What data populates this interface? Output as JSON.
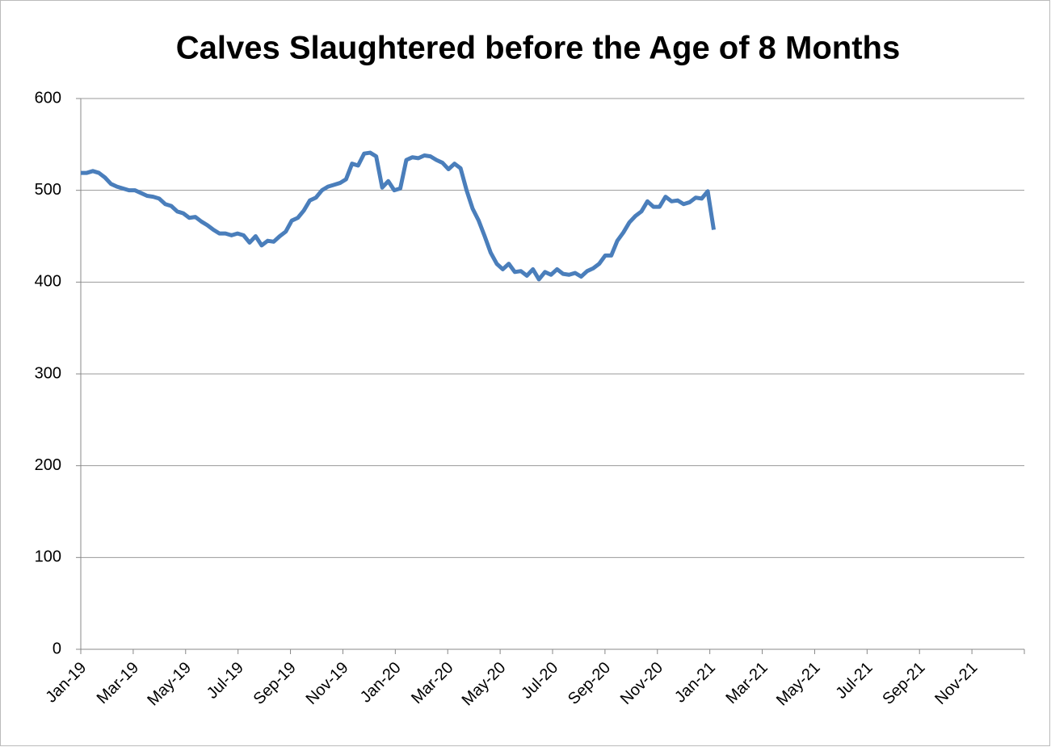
{
  "chart_data": {
    "type": "line",
    "title": "Calves Slaughtered before the Age of 8 Months",
    "x": [
      0,
      0.23,
      0.46,
      0.69,
      0.92,
      1.15,
      1.38,
      1.61,
      1.84,
      2.07,
      2.3,
      2.53,
      2.76,
      2.99,
      3.22,
      3.45,
      3.68,
      3.91,
      4.14,
      4.37,
      4.6,
      4.83,
      5.06,
      5.29,
      5.52,
      5.75,
      5.98,
      6.21,
      6.44,
      6.67,
      6.9,
      7.13,
      7.36,
      7.59,
      7.82,
      8.05,
      8.28,
      8.51,
      8.74,
      8.97,
      9.2,
      9.43,
      9.66,
      9.89,
      10.12,
      10.35,
      10.58,
      10.81,
      11.04,
      11.27,
      11.5,
      11.73,
      11.96,
      12.19,
      12.42,
      12.65,
      12.88,
      13.11,
      13.34,
      13.57,
      13.8,
      14.03,
      14.26,
      14.49,
      14.72,
      14.95,
      15.18,
      15.41,
      15.64,
      15.87,
      16.1,
      16.33,
      16.56,
      16.79,
      17.02,
      17.25,
      17.48,
      17.71,
      17.94,
      18.17,
      18.4,
      18.63,
      18.86,
      19.09,
      19.32,
      19.55,
      19.78,
      20.01,
      20.24,
      20.47,
      20.7,
      20.93,
      21.16,
      21.39,
      21.62,
      21.85,
      22.08,
      22.31,
      22.54,
      22.77,
      23,
      23.23,
      23.46,
      23.69,
      23.92,
      24.15
    ],
    "series": [
      {
        "color": "#4a7ebb",
        "values": [
          519,
          519,
          521,
          519,
          514,
          507,
          504,
          502,
          500,
          500,
          497,
          494,
          493,
          491,
          485,
          483,
          477,
          475,
          470,
          471,
          466,
          462,
          457,
          453,
          453,
          451,
          453,
          451,
          443,
          450,
          440,
          445,
          444,
          450,
          455,
          467,
          470,
          478,
          489,
          492,
          500,
          504,
          506,
          508,
          512,
          529,
          527,
          540,
          541,
          537,
          503,
          510,
          500,
          502,
          533,
          536,
          535,
          538,
          537,
          533,
          530,
          523,
          529,
          524,
          500,
          480,
          467,
          450,
          432,
          420,
          414,
          420,
          411,
          412,
          407,
          414,
          403,
          411,
          408,
          414,
          409,
          408,
          410,
          406,
          412,
          415,
          420,
          429,
          429,
          445,
          454,
          465,
          472,
          477,
          488,
          482,
          482,
          493,
          488,
          489,
          485,
          487,
          492,
          491,
          499,
          457
        ]
      }
    ],
    "xlim": [
      0,
      36
    ],
    "xticks": [
      {
        "value": 0,
        "label": "Jan-19"
      },
      {
        "value": 2,
        "label": "Mar-19"
      },
      {
        "value": 4,
        "label": "May-19"
      },
      {
        "value": 6,
        "label": "Jul-19"
      },
      {
        "value": 8,
        "label": "Sep-19"
      },
      {
        "value": 10,
        "label": "Nov-19"
      },
      {
        "value": 12,
        "label": "Jan-20"
      },
      {
        "value": 14,
        "label": "Mar-20"
      },
      {
        "value": 16,
        "label": "May-20"
      },
      {
        "value": 18,
        "label": "Jul-20"
      },
      {
        "value": 20,
        "label": "Sep-20"
      },
      {
        "value": 22,
        "label": "Nov-20"
      },
      {
        "value": 24,
        "label": "Jan-21"
      },
      {
        "value": 26,
        "label": "Mar-21"
      },
      {
        "value": 28,
        "label": "May-21"
      },
      {
        "value": 30,
        "label": "Jul-21"
      },
      {
        "value": 32,
        "label": "Sep-21"
      },
      {
        "value": 34,
        "label": "Nov-21"
      }
    ],
    "ylim": [
      0,
      600
    ],
    "yticks": [
      0,
      100,
      200,
      300,
      400,
      500,
      600
    ],
    "grid": true
  }
}
